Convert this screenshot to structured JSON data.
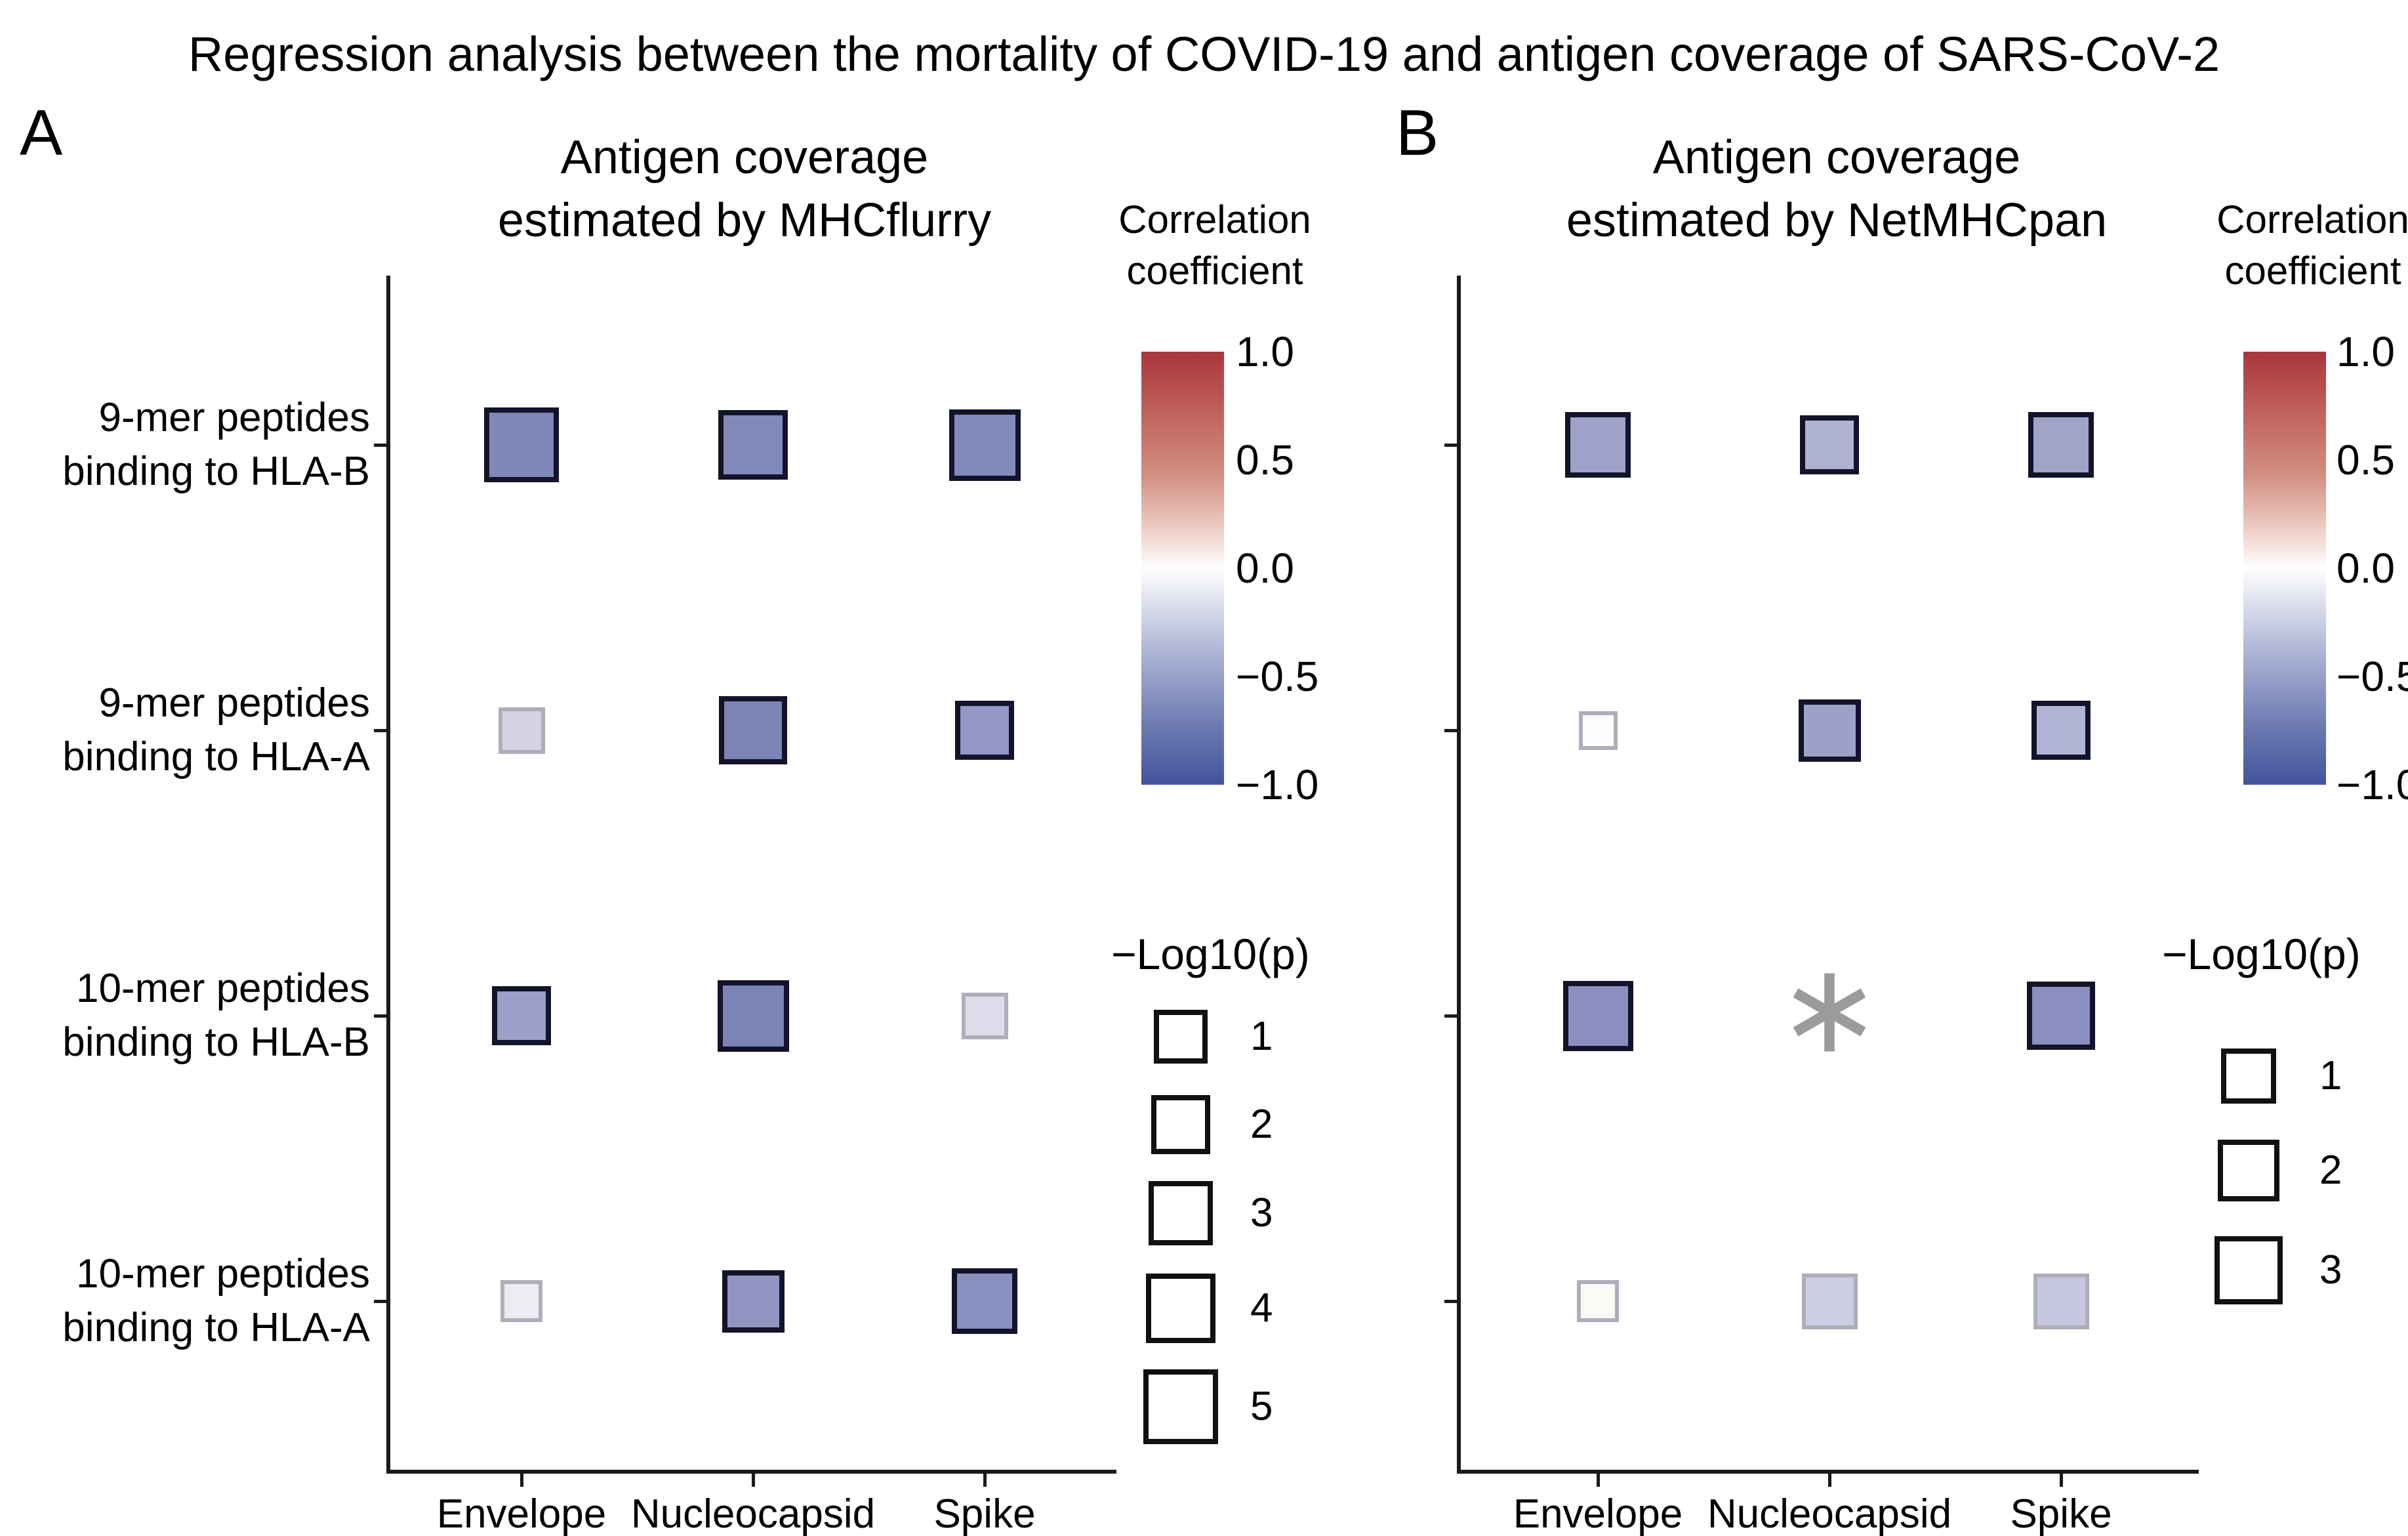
{
  "figure_title": "Regression analysis between the mortality of COVID-19 and antigen coverage of SARS-CoV-2",
  "asterisk_glyph": "∗",
  "colors": {
    "axis": "#1a1a1a",
    "dark_border": "#13142a",
    "light_border": "#aeaebb",
    "asterisk": "#9b9b9b",
    "background": "#ffffff"
  },
  "x_categories": [
    "Envelope",
    "Nucleocapsid",
    "Spike"
  ],
  "y_categories": [
    [
      "9-mer peptides",
      "binding to HLA-B"
    ],
    [
      "9-mer peptides",
      "binding to HLA-A"
    ],
    [
      "10-mer peptides",
      "binding to HLA-B"
    ],
    [
      "10-mer peptides",
      "binding to HLA-A"
    ]
  ],
  "colorbar": {
    "title1": "Correlation",
    "title2": "coefficient",
    "ticks": [
      "1.0",
      "0.5",
      "0.0",
      "−0.5",
      "−1.0"
    ],
    "range": [
      -1.0,
      1.0
    ],
    "gradient": [
      "#ab353c 0%",
      "#c0625c 14%",
      "#d28d80 28%",
      "#ecc8bf 40%",
      "#ffffff 50%",
      "#d4d8e8 60%",
      "#a3abd0 72%",
      "#6e7cb2 86%",
      "#42539b 100%"
    ]
  },
  "panels": [
    {
      "label": "A",
      "title1": "Antigen coverage",
      "title2": "estimated by MHCflurry",
      "legend": {
        "title": "−Log10(p)",
        "entries": [
          {
            "label": "1",
            "size": 82
          },
          {
            "label": "2",
            "size": 90
          },
          {
            "label": "3",
            "size": 98
          },
          {
            "label": "4",
            "size": 106
          },
          {
            "label": "5",
            "size": 114
          }
        ]
      },
      "points": [
        {
          "row": 0,
          "col": 0,
          "size": 114,
          "fill": "#7f88b8",
          "border": "dark"
        },
        {
          "row": 0,
          "col": 1,
          "size": 106,
          "fill": "#8289ba",
          "border": "dark"
        },
        {
          "row": 0,
          "col": 2,
          "size": 109,
          "fill": "#8289ba",
          "border": "dark"
        },
        {
          "row": 1,
          "col": 0,
          "size": 71,
          "fill": "#d4d4e4",
          "border": "light"
        },
        {
          "row": 1,
          "col": 1,
          "size": 104,
          "fill": "#7d85b7",
          "border": "dark"
        },
        {
          "row": 1,
          "col": 2,
          "size": 90,
          "fill": "#9399c4",
          "border": "dark"
        },
        {
          "row": 2,
          "col": 0,
          "size": 90,
          "fill": "#9ba0c8",
          "border": "dark"
        },
        {
          "row": 2,
          "col": 1,
          "size": 109,
          "fill": "#7b84b5",
          "border": "dark"
        },
        {
          "row": 2,
          "col": 2,
          "size": 71,
          "fill": "#dcdcea",
          "border": "light"
        },
        {
          "row": 3,
          "col": 0,
          "size": 64,
          "fill": "#ececf2",
          "border": "light"
        },
        {
          "row": 3,
          "col": 1,
          "size": 95,
          "fill": "#9095c2",
          "border": "dark"
        },
        {
          "row": 3,
          "col": 2,
          "size": 100,
          "fill": "#8a90bf",
          "border": "dark"
        }
      ]
    },
    {
      "label": "B",
      "title1": "Antigen coverage",
      "title2": "estimated by NetMHCpan",
      "legend": {
        "title": "−Log10(p)",
        "entries": [
          {
            "label": "1",
            "size": 84
          },
          {
            "label": "2",
            "size": 94
          },
          {
            "label": "3",
            "size": 104
          }
        ]
      },
      "points": [
        {
          "row": 0,
          "col": 0,
          "size": 100,
          "fill": "#9ea2c8",
          "border": "dark"
        },
        {
          "row": 0,
          "col": 1,
          "size": 90,
          "fill": "#b0b2d2",
          "border": "dark"
        },
        {
          "row": 0,
          "col": 2,
          "size": 100,
          "fill": "#a0a4c9",
          "border": "dark"
        },
        {
          "row": 1,
          "col": 0,
          "size": 59,
          "fill": "#fdfdfe",
          "border": "light"
        },
        {
          "row": 1,
          "col": 1,
          "size": 95,
          "fill": "#9da1c7",
          "border": "dark"
        },
        {
          "row": 1,
          "col": 2,
          "size": 90,
          "fill": "#b2b4d3",
          "border": "dark"
        },
        {
          "row": 2,
          "col": 0,
          "size": 107,
          "fill": "#8a8fbf",
          "border": "dark"
        },
        {
          "row": 2,
          "col": 1,
          "marker": "asterisk"
        },
        {
          "row": 2,
          "col": 2,
          "size": 104,
          "fill": "#8a8fbf",
          "border": "dark"
        },
        {
          "row": 3,
          "col": 0,
          "size": 64,
          "fill": "#fbfaf6",
          "border": "light"
        },
        {
          "row": 3,
          "col": 1,
          "size": 85,
          "fill": "#cdcde4",
          "border": "light"
        },
        {
          "row": 3,
          "col": 2,
          "size": 85,
          "fill": "#c6c7de",
          "border": "light"
        }
      ]
    }
  ],
  "chart_data": [
    {
      "type": "scatter",
      "panel": "A",
      "title": "Antigen coverage estimated by MHCflurry",
      "x_categories": [
        "Envelope",
        "Nucleocapsid",
        "Spike"
      ],
      "y_categories": [
        "9-mer peptides binding to HLA-B",
        "9-mer peptides binding to HLA-A",
        "10-mer peptides binding to HLA-B",
        "10-mer peptides binding to HLA-A"
      ],
      "color_encodes": "Correlation coefficient",
      "colorbar_range": [
        -1.0,
        1.0
      ],
      "size_encodes": "−Log10(p)",
      "size_legend_values": [
        1,
        2,
        3,
        4,
        5
      ],
      "points": [
        {
          "x": "Envelope",
          "y": "9-mer peptides binding to HLA-B",
          "corr_est": -0.5,
          "neg_log10_p_est": 5.0
        },
        {
          "x": "Nucleocapsid",
          "y": "9-mer peptides binding to HLA-B",
          "corr_est": -0.48,
          "neg_log10_p_est": 4.0
        },
        {
          "x": "Spike",
          "y": "9-mer peptides binding to HLA-B",
          "corr_est": -0.48,
          "neg_log10_p_est": 4.5
        },
        {
          "x": "Envelope",
          "y": "9-mer peptides binding to HLA-A",
          "corr_est": -0.12,
          "neg_log10_p_est": 0.5
        },
        {
          "x": "Nucleocapsid",
          "y": "9-mer peptides binding to HLA-A",
          "corr_est": -0.5,
          "neg_log10_p_est": 4.0
        },
        {
          "x": "Spike",
          "y": "9-mer peptides binding to HLA-A",
          "corr_est": -0.38,
          "neg_log10_p_est": 2.0
        },
        {
          "x": "Envelope",
          "y": "10-mer peptides binding to HLA-B",
          "corr_est": -0.35,
          "neg_log10_p_est": 2.0
        },
        {
          "x": "Nucleocapsid",
          "y": "10-mer peptides binding to HLA-B",
          "corr_est": -0.52,
          "neg_log10_p_est": 4.5
        },
        {
          "x": "Spike",
          "y": "10-mer peptides binding to HLA-B",
          "corr_est": -0.1,
          "neg_log10_p_est": 0.5
        },
        {
          "x": "Envelope",
          "y": "10-mer peptides binding to HLA-A",
          "corr_est": -0.06,
          "neg_log10_p_est": 0.3
        },
        {
          "x": "Nucleocapsid",
          "y": "10-mer peptides binding to HLA-A",
          "corr_est": -0.4,
          "neg_log10_p_est": 2.5
        },
        {
          "x": "Spike",
          "y": "10-mer peptides binding to HLA-A",
          "corr_est": -0.44,
          "neg_log10_p_est": 3.0
        }
      ]
    },
    {
      "type": "scatter",
      "panel": "B",
      "title": "Antigen coverage estimated by NetMHCpan",
      "x_categories": [
        "Envelope",
        "Nucleocapsid",
        "Spike"
      ],
      "y_categories": [
        "9-mer peptides binding to HLA-B",
        "9-mer peptides binding to HLA-A",
        "10-mer peptides binding to HLA-B",
        "10-mer peptides binding to HLA-A"
      ],
      "color_encodes": "Correlation coefficient",
      "colorbar_range": [
        -1.0,
        1.0
      ],
      "size_encodes": "−Log10(p)",
      "size_legend_values": [
        1,
        2,
        3
      ],
      "points": [
        {
          "x": "Envelope",
          "y": "9-mer peptides binding to HLA-B",
          "corr_est": -0.35,
          "neg_log10_p_est": 2.5
        },
        {
          "x": "Nucleocapsid",
          "y": "9-mer peptides binding to HLA-B",
          "corr_est": -0.26,
          "neg_log10_p_est": 1.5
        },
        {
          "x": "Spike",
          "y": "9-mer peptides binding to HLA-B",
          "corr_est": -0.34,
          "neg_log10_p_est": 2.5
        },
        {
          "x": "Envelope",
          "y": "9-mer peptides binding to HLA-A",
          "corr_est": -0.01,
          "neg_log10_p_est": 0.1
        },
        {
          "x": "Nucleocapsid",
          "y": "9-mer peptides binding to HLA-A",
          "corr_est": -0.35,
          "neg_log10_p_est": 2.0
        },
        {
          "x": "Spike",
          "y": "9-mer peptides binding to HLA-A",
          "corr_est": -0.26,
          "neg_log10_p_est": 1.5
        },
        {
          "x": "Envelope",
          "y": "10-mer peptides binding to HLA-B",
          "corr_est": -0.45,
          "neg_log10_p_est": 3.5
        },
        {
          "x": "Nucleocapsid",
          "y": "10-mer peptides binding to HLA-B",
          "marker": "asterisk",
          "corr_est": null,
          "neg_log10_p_est": null
        },
        {
          "x": "Spike",
          "y": "10-mer peptides binding to HLA-B",
          "corr_est": -0.45,
          "neg_log10_p_est": 3.0
        },
        {
          "x": "Envelope",
          "y": "10-mer peptides binding to HLA-A",
          "corr_est": -0.02,
          "neg_log10_p_est": 0.2
        },
        {
          "x": "Nucleocapsid",
          "y": "10-mer peptides binding to HLA-A",
          "corr_est": -0.16,
          "neg_log10_p_est": 1.0
        },
        {
          "x": "Spike",
          "y": "10-mer peptides binding to HLA-A",
          "corr_est": -0.18,
          "neg_log10_p_est": 1.0
        }
      ]
    }
  ]
}
